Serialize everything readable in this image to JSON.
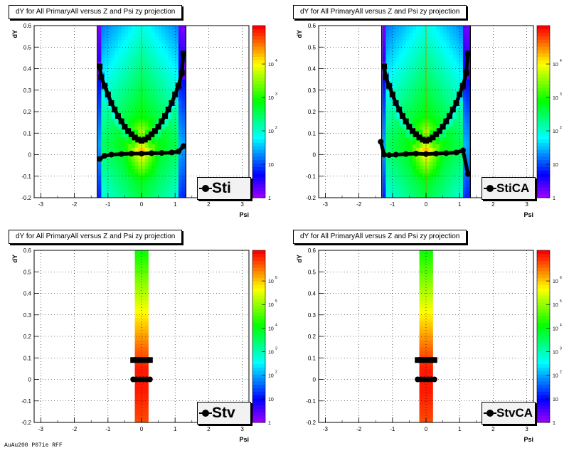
{
  "chart_data": [
    {
      "type": "heatmap",
      "title": "dY for All PrimaryAll versus Z and Psi zy projection",
      "xlabel": "Psi",
      "ylabel": "dY",
      "xlim": [
        -3.2,
        3.2
      ],
      "ylim": [
        -0.2,
        0.6
      ],
      "xticks": [
        "-3",
        "-2",
        "-1",
        "0",
        "1",
        "2",
        "3"
      ],
      "yticks": [
        "-0.2",
        "-0.1",
        "0",
        "0.1",
        "0.2",
        "0.3",
        "0.4",
        "0.5",
        "0.6"
      ],
      "colorbar": {
        "scale": "log",
        "ticks": [
          "1",
          "10",
          "10",
          "10",
          "10"
        ],
        "exponents": [
          "",
          "",
          "2",
          "3",
          "4"
        ]
      },
      "grid": true,
      "legend": "Sti",
      "profile_upper": [
        [
          -1.25,
          0.41
        ],
        [
          -1.2,
          0.36
        ],
        [
          -1.1,
          0.32
        ],
        [
          -1.0,
          0.28
        ],
        [
          -0.9,
          0.24
        ],
        [
          -0.8,
          0.21
        ],
        [
          -0.7,
          0.18
        ],
        [
          -0.6,
          0.155
        ],
        [
          -0.5,
          0.13
        ],
        [
          -0.4,
          0.11
        ],
        [
          -0.3,
          0.095
        ],
        [
          -0.2,
          0.08
        ],
        [
          -0.1,
          0.07
        ],
        [
          0.0,
          0.065
        ],
        [
          0.1,
          0.07
        ],
        [
          0.2,
          0.08
        ],
        [
          0.3,
          0.095
        ],
        [
          0.4,
          0.11
        ],
        [
          0.5,
          0.13
        ],
        [
          0.6,
          0.155
        ],
        [
          0.7,
          0.18
        ],
        [
          0.8,
          0.21
        ],
        [
          0.9,
          0.24
        ],
        [
          1.0,
          0.28
        ],
        [
          1.1,
          0.32
        ],
        [
          1.2,
          0.38
        ],
        [
          1.25,
          0.47
        ]
      ],
      "profile_lower": [
        [
          -1.25,
          -0.02
        ],
        [
          -1.1,
          -0.005
        ],
        [
          -0.9,
          0.0
        ],
        [
          -0.6,
          0.003
        ],
        [
          -0.3,
          0.005
        ],
        [
          0.0,
          0.005
        ],
        [
          0.3,
          0.007
        ],
        [
          0.6,
          0.008
        ],
        [
          0.9,
          0.01
        ],
        [
          1.1,
          0.015
        ],
        [
          1.25,
          0.04
        ]
      ]
    },
    {
      "type": "heatmap",
      "title": "dY for All PrimaryAll versus Z and Psi zy projection",
      "xlabel": "Psi",
      "ylabel": "dY",
      "xlim": [
        -3.2,
        3.2
      ],
      "ylim": [
        -0.2,
        0.6
      ],
      "xticks": [
        "-3",
        "-2",
        "-1",
        "0",
        "1",
        "2",
        "3"
      ],
      "yticks": [
        "-0.2",
        "-0.1",
        "0",
        "0.1",
        "0.2",
        "0.3",
        "0.4",
        "0.5",
        "0.6"
      ],
      "colorbar": {
        "scale": "log",
        "ticks": [
          "1",
          "10",
          "10",
          "10",
          "10"
        ],
        "exponents": [
          "",
          "",
          "2",
          "3",
          "4"
        ]
      },
      "grid": true,
      "legend": "StiCA",
      "profile_upper": [
        [
          -1.25,
          0.41
        ],
        [
          -1.2,
          0.36
        ],
        [
          -1.1,
          0.32
        ],
        [
          -1.0,
          0.28
        ],
        [
          -0.9,
          0.24
        ],
        [
          -0.8,
          0.21
        ],
        [
          -0.7,
          0.18
        ],
        [
          -0.6,
          0.155
        ],
        [
          -0.5,
          0.13
        ],
        [
          -0.4,
          0.11
        ],
        [
          -0.3,
          0.095
        ],
        [
          -0.2,
          0.08
        ],
        [
          -0.1,
          0.07
        ],
        [
          0.0,
          0.065
        ],
        [
          0.1,
          0.07
        ],
        [
          0.2,
          0.08
        ],
        [
          0.3,
          0.095
        ],
        [
          0.4,
          0.11
        ],
        [
          0.5,
          0.13
        ],
        [
          0.6,
          0.155
        ],
        [
          0.7,
          0.18
        ],
        [
          0.8,
          0.21
        ],
        [
          0.9,
          0.24
        ],
        [
          1.0,
          0.28
        ],
        [
          1.1,
          0.32
        ],
        [
          1.2,
          0.38
        ],
        [
          1.25,
          0.47
        ]
      ],
      "profile_lower": [
        [
          -1.35,
          0.06
        ],
        [
          -1.25,
          0.0
        ],
        [
          -1.1,
          -0.002
        ],
        [
          -0.9,
          0.0
        ],
        [
          -0.6,
          0.003
        ],
        [
          -0.3,
          0.005
        ],
        [
          0.0,
          0.003
        ],
        [
          0.3,
          0.005
        ],
        [
          0.6,
          0.007
        ],
        [
          0.9,
          0.01
        ],
        [
          1.1,
          0.02
        ],
        [
          1.25,
          -0.09
        ]
      ]
    },
    {
      "type": "heatmap",
      "title": "dY for All PrimaryAll versus Z and Psi zy projection",
      "xlabel": "Psi",
      "ylabel": "dY",
      "xlim": [
        -3.2,
        3.2
      ],
      "ylim": [
        -0.2,
        0.6
      ],
      "xticks": [
        "-3",
        "-2",
        "-1",
        "0",
        "1",
        "2",
        "3"
      ],
      "yticks": [
        "-0.2",
        "-0.1",
        "0",
        "0.1",
        "0.2",
        "0.3",
        "0.4",
        "0.5",
        "0.6"
      ],
      "colorbar": {
        "scale": "log",
        "ticks": [
          "1",
          "10",
          "10",
          "10",
          "10",
          "10",
          "10"
        ],
        "exponents": [
          "",
          "",
          "2",
          "3",
          "4",
          "5",
          "6"
        ]
      },
      "grid": true,
      "legend": "Stv",
      "profile_upper": [
        [
          -0.25,
          0.09
        ],
        [
          -0.15,
          0.09
        ],
        [
          -0.05,
          0.09
        ],
        [
          0.05,
          0.09
        ],
        [
          0.15,
          0.09
        ],
        [
          0.25,
          0.09
        ]
      ],
      "profile_lower": [
        [
          -0.25,
          0.0
        ],
        [
          -0.15,
          0.0
        ],
        [
          -0.05,
          0.0
        ],
        [
          0.05,
          0.0
        ],
        [
          0.15,
          0.0
        ],
        [
          0.25,
          0.0
        ]
      ]
    },
    {
      "type": "heatmap",
      "title": "dY for All PrimaryAll versus Z and Psi zy projection",
      "xlabel": "Psi",
      "ylabel": "dY",
      "xlim": [
        -3.2,
        3.2
      ],
      "ylim": [
        -0.2,
        0.6
      ],
      "xticks": [
        "-3",
        "-2",
        "-1",
        "0",
        "1",
        "2",
        "3"
      ],
      "yticks": [
        "-0.2",
        "-0.1",
        "0",
        "0.1",
        "0.2",
        "0.3",
        "0.4",
        "0.5",
        "0.6"
      ],
      "colorbar": {
        "scale": "log",
        "ticks": [
          "1",
          "10",
          "10",
          "10",
          "10",
          "10",
          "10"
        ],
        "exponents": [
          "",
          "",
          "2",
          "3",
          "4",
          "5",
          "6"
        ]
      },
      "grid": true,
      "legend": "StvCA",
      "profile_upper": [
        [
          -0.25,
          0.09
        ],
        [
          -0.15,
          0.09
        ],
        [
          -0.05,
          0.09
        ],
        [
          0.05,
          0.09
        ],
        [
          0.15,
          0.09
        ],
        [
          0.25,
          0.09
        ]
      ],
      "profile_lower": [
        [
          -0.25,
          0.0
        ],
        [
          -0.15,
          0.0
        ],
        [
          -0.05,
          0.0
        ],
        [
          0.05,
          0.0
        ],
        [
          0.15,
          0.0
        ],
        [
          0.25,
          0.0
        ]
      ]
    }
  ],
  "footer": "AuAu200 P07ie RFF"
}
